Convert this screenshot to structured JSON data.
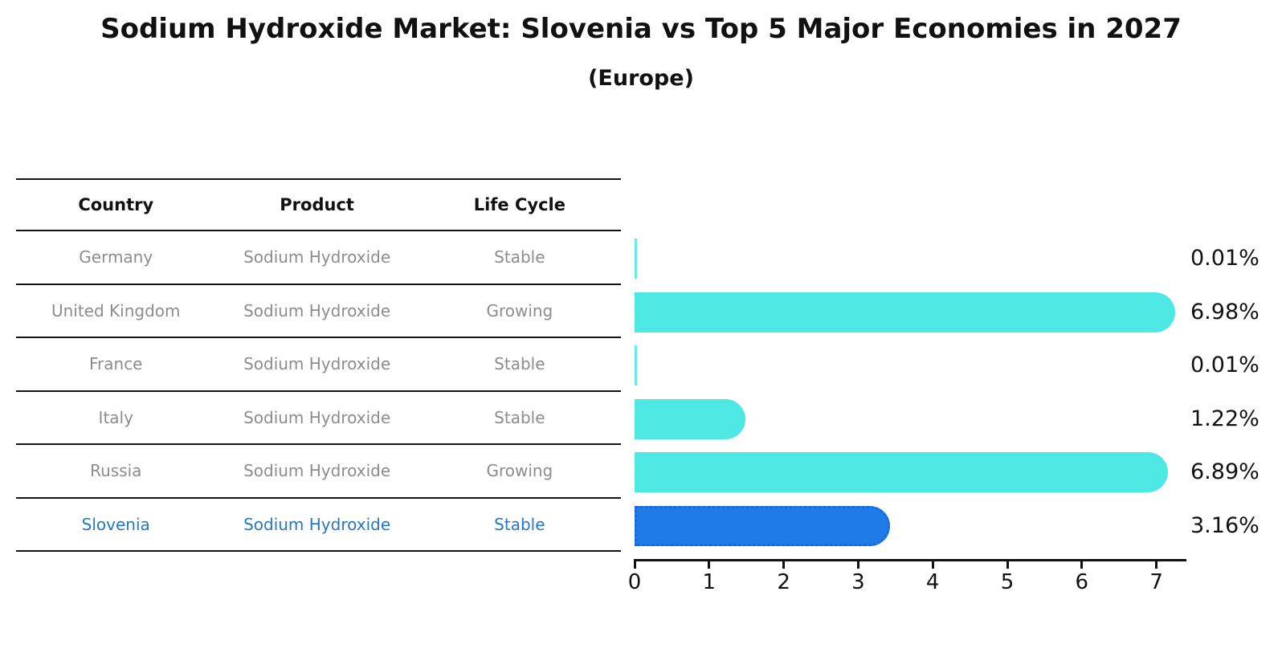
{
  "title": "Sodium Hydroxide Market: Slovenia vs Top 5 Major Economies in 2027",
  "subtitle": "(Europe)",
  "table": {
    "headers": [
      "Country",
      "Product",
      "Life Cycle"
    ],
    "rows": [
      {
        "country": "Germany",
        "product": "Sodium Hydroxide",
        "life_cycle": "Stable",
        "highlight": false
      },
      {
        "country": "United Kingdom",
        "product": "Sodium Hydroxide",
        "life_cycle": "Growing",
        "highlight": false
      },
      {
        "country": "France",
        "product": "Sodium Hydroxide",
        "life_cycle": "Stable",
        "highlight": false
      },
      {
        "country": "Italy",
        "product": "Sodium Hydroxide",
        "life_cycle": "Stable",
        "highlight": false
      },
      {
        "country": "Russia",
        "product": "Sodium Hydroxide",
        "life_cycle": "Growing",
        "highlight": false
      },
      {
        "country": "Slovenia",
        "product": "Sodium Hydroxide",
        "life_cycle": "Stable",
        "highlight": true
      }
    ]
  },
  "chart_data": {
    "type": "bar",
    "orientation": "horizontal",
    "title": "Sodium Hydroxide Market: Slovenia vs Top 5 Major Economies in 2027",
    "subtitle": "(Europe)",
    "categories": [
      "Germany",
      "United Kingdom",
      "France",
      "Italy",
      "Russia",
      "Slovenia"
    ],
    "values": [
      0.01,
      6.98,
      0.01,
      1.22,
      6.89,
      3.16
    ],
    "labels": [
      "0.01%",
      "6.98%",
      "0.01%",
      "1.22%",
      "6.89%",
      "3.16%"
    ],
    "xlim": [
      0,
      7.4
    ],
    "xticks": [
      0,
      1,
      2,
      3,
      4,
      5,
      6,
      7
    ],
    "grid": false,
    "legend": "none",
    "bar_color": "#4DE8E4",
    "highlight_color": "#1E7BE8",
    "highlight_border_color": "#1B66DE",
    "highlight_index": 5
  },
  "colors": {
    "text": "#111111",
    "table_text": "#8c8c8c",
    "highlight_text": "#2478C4",
    "line": "#141414"
  }
}
